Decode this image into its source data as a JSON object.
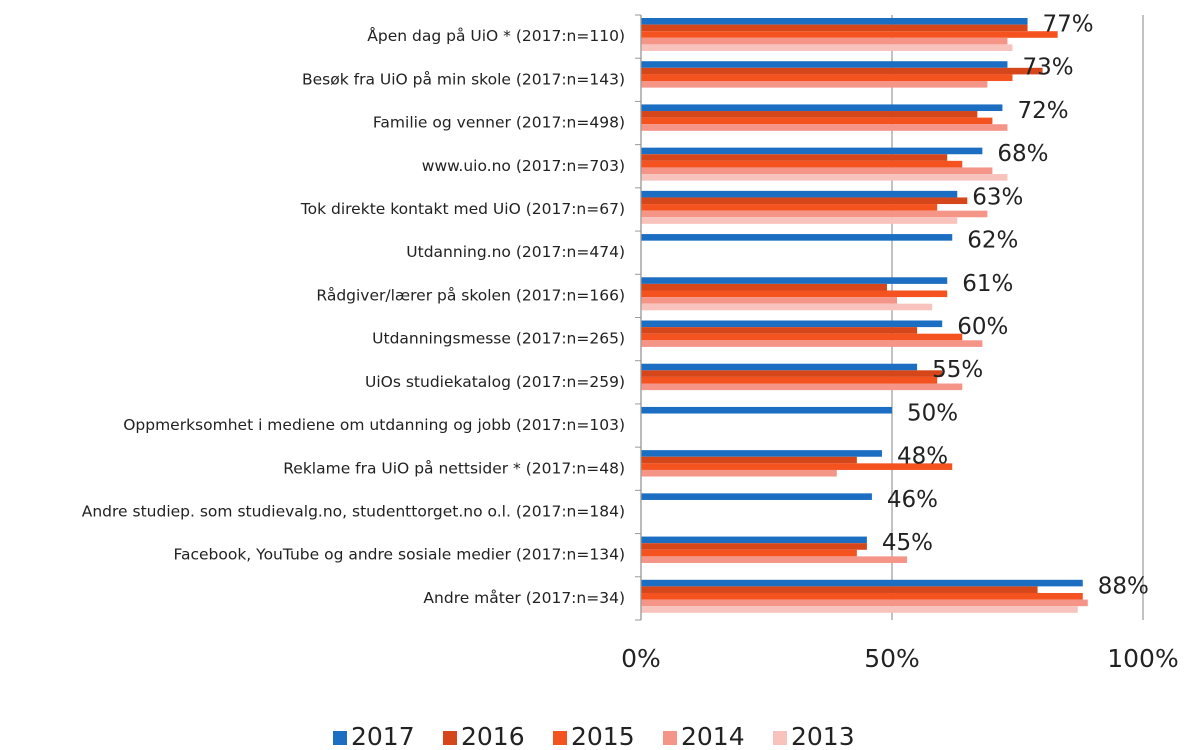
{
  "chart_data": {
    "type": "hbar",
    "categories": [
      "Åpen dag på UiO * (2017:n=110)",
      "Besøk fra UiO på min skole (2017:n=143)",
      "Familie og venner (2017:n=498)",
      "www.uio.no (2017:n=703)",
      "Tok direkte kontakt med UiO (2017:n=67)",
      "Utdanning.no (2017:n=474)",
      "Rådgiver/lærer på skolen (2017:n=166)",
      "Utdanningsmesse (2017:n=265)",
      "UiOs studiekatalog (2017:n=259)",
      "Oppmerksomhet i mediene om utdanning og jobb (2017:n=103)",
      "Reklame fra UiO på nettsider * (2017:n=48)",
      "Andre studiep. som studievalg.no, studenttorget.no o.l. (2017:n=184)",
      "Facebook, YouTube og andre sosiale medier (2017:n=134)",
      "Andre måter (2017:n=34)"
    ],
    "series": [
      {
        "name": "2017",
        "color": "#1b6ec2",
        "values": [
          77,
          73,
          72,
          68,
          63,
          62,
          61,
          60,
          55,
          50,
          48,
          46,
          45,
          88
        ],
        "value_labels": [
          "77%",
          "73%",
          "72%",
          "68%",
          "63%",
          "62%",
          "61%",
          "60%",
          "55%",
          "50%",
          "48%",
          "46%",
          "45%",
          "88%"
        ]
      },
      {
        "name": "2016",
        "color": "#d6461b",
        "values": [
          77,
          80,
          67,
          61,
          65,
          null,
          49,
          55,
          60,
          null,
          43,
          null,
          45,
          79
        ]
      },
      {
        "name": "2015",
        "color": "#f4531f",
        "values": [
          83,
          74,
          70,
          64,
          59,
          null,
          61,
          64,
          59,
          null,
          62,
          null,
          43,
          88
        ]
      },
      {
        "name": "2014",
        "color": "#f49588",
        "values": [
          73,
          69,
          73,
          70,
          69,
          null,
          51,
          68,
          64,
          null,
          39,
          null,
          53,
          89
        ]
      },
      {
        "name": "2013",
        "color": "#f8c3bd",
        "values": [
          74,
          null,
          null,
          73,
          63,
          null,
          58,
          null,
          null,
          null,
          null,
          null,
          null,
          87
        ]
      }
    ],
    "xlim": [
      0,
      100
    ],
    "xticks": [
      {
        "value": 0,
        "label": "0%"
      },
      {
        "value": 50,
        "label": "50%"
      },
      {
        "value": 100,
        "label": "100%"
      }
    ],
    "grid": true,
    "legend": "bottom"
  }
}
